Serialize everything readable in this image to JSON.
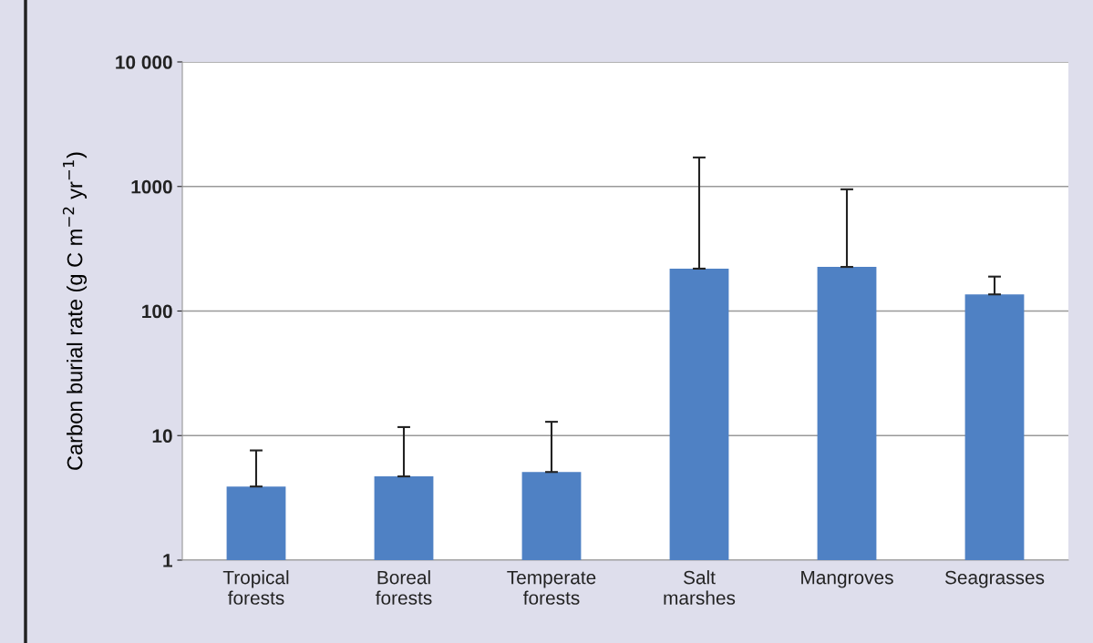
{
  "chart_data": {
    "type": "bar",
    "ylabel": "Carbon burial rate (g C m$^{−2}$ yr$^{−1}$)",
    "categories": [
      "Tropical\nforests",
      "Boreal\nforests",
      "Temperate\nforests",
      "Salt\nmarshes",
      "Mangroves",
      "Seagrasses"
    ],
    "values": [
      3.9,
      4.7,
      5.1,
      219,
      226,
      136
    ],
    "errors": [
      [
        3.9,
        7.6
      ],
      [
        4.7,
        11.7
      ],
      [
        5.1,
        12.9
      ],
      [
        219,
        1710
      ],
      [
        226,
        949
      ],
      [
        136,
        189
      ]
    ],
    "color": "#4f81c4",
    "log": true,
    "ylim": [
      1,
      10000
    ],
    "yticks": [
      1,
      10,
      100,
      1000,
      {
        "value": 10000,
        "label": "10 000"
      }
    ],
    "grid": "y"
  }
}
